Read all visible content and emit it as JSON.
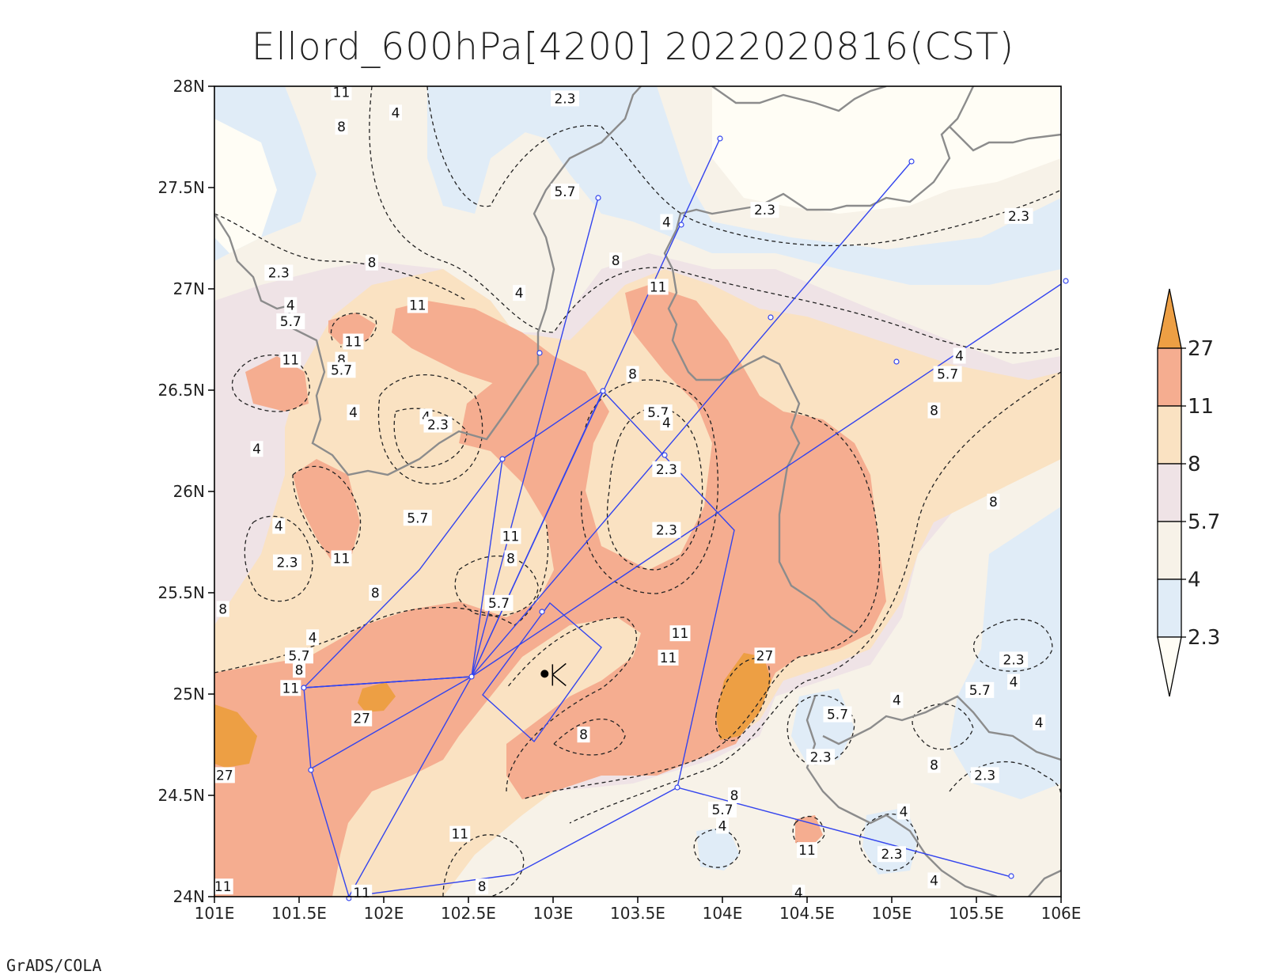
{
  "title": "Ellord_600hPa[4200] 2022020816(CST)",
  "footer": "GrADS/COLA",
  "map": {
    "lon_range": [
      101,
      106
    ],
    "lat_range": [
      24,
      28
    ],
    "x_ticks": [
      "101E",
      "101.5E",
      "102E",
      "102.5E",
      "103E",
      "103.5E",
      "104E",
      "104.5E",
      "105E",
      "105.5E",
      "106E"
    ],
    "y_ticks": [
      "24N",
      "24.5N",
      "25N",
      "25.5N",
      "26N",
      "26.5N",
      "27N",
      "27.5N",
      "28N"
    ],
    "station_marker": {
      "lon": 102.95,
      "lat": 25.1
    },
    "contour_labels": [
      {
        "t": "11",
        "lon": 101.75,
        "lat": 27.97
      },
      {
        "t": "2.3",
        "lon": 103.07,
        "lat": 27.94
      },
      {
        "t": "8",
        "lon": 101.75,
        "lat": 27.8
      },
      {
        "t": "4",
        "lon": 102.07,
        "lat": 27.87
      },
      {
        "t": "5.7",
        "lon": 103.07,
        "lat": 27.48
      },
      {
        "t": "4",
        "lon": 103.67,
        "lat": 27.33
      },
      {
        "t": "2.3",
        "lon": 104.25,
        "lat": 27.39
      },
      {
        "t": "2.3",
        "lon": 105.75,
        "lat": 27.36
      },
      {
        "t": "8",
        "lon": 101.93,
        "lat": 27.13
      },
      {
        "t": "2.3",
        "lon": 101.38,
        "lat": 27.08
      },
      {
        "t": "8",
        "lon": 103.37,
        "lat": 27.14
      },
      {
        "t": "11",
        "lon": 103.62,
        "lat": 27.01
      },
      {
        "t": "4",
        "lon": 102.8,
        "lat": 26.98
      },
      {
        "t": "4",
        "lon": 101.45,
        "lat": 26.92
      },
      {
        "t": "5.7",
        "lon": 101.45,
        "lat": 26.84
      },
      {
        "t": "11",
        "lon": 102.2,
        "lat": 26.92
      },
      {
        "t": "11",
        "lon": 101.82,
        "lat": 26.74
      },
      {
        "t": "11",
        "lon": 101.45,
        "lat": 26.65
      },
      {
        "t": "8",
        "lon": 101.75,
        "lat": 26.65
      },
      {
        "t": "5.7",
        "lon": 101.75,
        "lat": 26.6
      },
      {
        "t": "8",
        "lon": 103.47,
        "lat": 26.58
      },
      {
        "t": "4",
        "lon": 105.4,
        "lat": 26.67
      },
      {
        "t": "5.7",
        "lon": 105.33,
        "lat": 26.58
      },
      {
        "t": "8",
        "lon": 105.25,
        "lat": 26.4
      },
      {
        "t": "4",
        "lon": 101.82,
        "lat": 26.39
      },
      {
        "t": "4",
        "lon": 102.25,
        "lat": 26.37
      },
      {
        "t": "2.3",
        "lon": 102.32,
        "lat": 26.33
      },
      {
        "t": "5.7",
        "lon": 103.62,
        "lat": 26.39
      },
      {
        "t": "4",
        "lon": 103.67,
        "lat": 26.34
      },
      {
        "t": "4",
        "lon": 101.25,
        "lat": 26.21
      },
      {
        "t": "2.3",
        "lon": 103.67,
        "lat": 26.11
      },
      {
        "t": "5.7",
        "lon": 102.2,
        "lat": 25.87
      },
      {
        "t": "8",
        "lon": 105.6,
        "lat": 25.95
      },
      {
        "t": "4",
        "lon": 101.38,
        "lat": 25.83
      },
      {
        "t": "11",
        "lon": 102.75,
        "lat": 25.78
      },
      {
        "t": "2.3",
        "lon": 103.67,
        "lat": 25.81
      },
      {
        "t": "8",
        "lon": 102.75,
        "lat": 25.67
      },
      {
        "t": "2.3",
        "lon": 101.43,
        "lat": 25.65
      },
      {
        "t": "11",
        "lon": 101.75,
        "lat": 25.67
      },
      {
        "t": "8",
        "lon": 101.95,
        "lat": 25.5
      },
      {
        "t": "5.7",
        "lon": 102.68,
        "lat": 25.45
      },
      {
        "t": "8",
        "lon": 101.05,
        "lat": 25.42
      },
      {
        "t": "11",
        "lon": 103.75,
        "lat": 25.3
      },
      {
        "t": "4",
        "lon": 101.58,
        "lat": 25.28
      },
      {
        "t": "5.7",
        "lon": 101.5,
        "lat": 25.19
      },
      {
        "t": "8",
        "lon": 101.5,
        "lat": 25.12
      },
      {
        "t": "11",
        "lon": 103.68,
        "lat": 25.18
      },
      {
        "t": "27",
        "lon": 104.25,
        "lat": 25.19
      },
      {
        "t": "2.3",
        "lon": 105.72,
        "lat": 25.17
      },
      {
        "t": "4",
        "lon": 105.72,
        "lat": 25.06
      },
      {
        "t": "5.7",
        "lon": 105.52,
        "lat": 25.02
      },
      {
        "t": "11",
        "lon": 101.45,
        "lat": 25.03
      },
      {
        "t": "4",
        "lon": 105.03,
        "lat": 24.97
      },
      {
        "t": "4",
        "lon": 105.87,
        "lat": 24.86
      },
      {
        "t": "5.7",
        "lon": 104.68,
        "lat": 24.9
      },
      {
        "t": "27",
        "lon": 101.87,
        "lat": 24.88
      },
      {
        "t": "8",
        "lon": 103.18,
        "lat": 24.8
      },
      {
        "t": "2.3",
        "lon": 104.58,
        "lat": 24.69
      },
      {
        "t": "8",
        "lon": 105.25,
        "lat": 24.65
      },
      {
        "t": "27",
        "lon": 101.06,
        "lat": 24.6
      },
      {
        "t": "2.3",
        "lon": 105.55,
        "lat": 24.6
      },
      {
        "t": "8",
        "lon": 104.07,
        "lat": 24.5
      },
      {
        "t": "5.7",
        "lon": 104.0,
        "lat": 24.43
      },
      {
        "t": "4",
        "lon": 105.07,
        "lat": 24.42
      },
      {
        "t": "4",
        "lon": 104.0,
        "lat": 24.35
      },
      {
        "t": "11",
        "lon": 102.45,
        "lat": 24.31
      },
      {
        "t": "11",
        "lon": 104.5,
        "lat": 24.23
      },
      {
        "t": "2.3",
        "lon": 105.0,
        "lat": 24.21
      },
      {
        "t": "8",
        "lon": 102.58,
        "lat": 24.05
      },
      {
        "t": "4",
        "lon": 104.45,
        "lat": 24.02
      },
      {
        "t": "4",
        "lon": 105.25,
        "lat": 24.08
      },
      {
        "t": "11",
        "lon": 101.87,
        "lat": 24.02
      },
      {
        "t": "11",
        "lon": 101.05,
        "lat": 24.05
      }
    ]
  },
  "colorbar": {
    "levels": [
      "2.3",
      "4",
      "5.7",
      "8",
      "11",
      "27"
    ],
    "colors": [
      "#fffdf5",
      "#e0ecf7",
      "#f7f2e8",
      "#efe3e6",
      "#fae2c2",
      "#f5ad90",
      "#ed9f44"
    ]
  },
  "colors": {
    "land_boundary": "#8c8c8c",
    "trajectory": "#3344ee",
    "contour": "#222222"
  }
}
